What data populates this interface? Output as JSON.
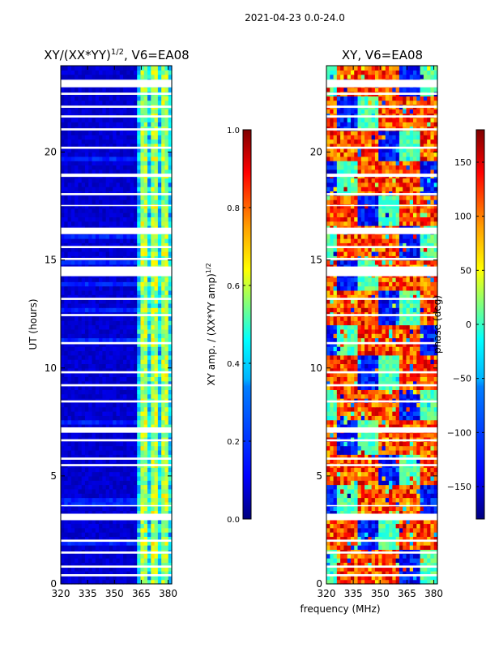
{
  "figure_title": "2021-04-23 0.0-24.0",
  "colors": {
    "jet": [
      "#00007f",
      "#0000ff",
      "#007fff",
      "#00ffff",
      "#7fff7f",
      "#ffff00",
      "#ff7f00",
      "#ff0000",
      "#7f0000"
    ],
    "background": "#ffffff",
    "gap": "#ffffff"
  },
  "chart_data": [
    {
      "type": "heatmap",
      "title": "XY/(XX*YY)",
      "title_superscript": "1/2",
      "title_suffix": ", V6=EA08",
      "xlabel": "",
      "ylabel": "UT (hours)",
      "xlim": [
        320,
        382
      ],
      "ylim": [
        0,
        24
      ],
      "x_ticks": [
        "320",
        "335",
        "350",
        "365",
        "380"
      ],
      "y_ticks": [
        "0",
        "5",
        "10",
        "15",
        "20"
      ],
      "x_tick_values": [
        320,
        335,
        350,
        365,
        380
      ],
      "y_tick_values": [
        0,
        5,
        10,
        15,
        20
      ],
      "colorbar": {
        "label": "XY amp. / (XX*YY amp)",
        "label_superscript": "1/2",
        "range": [
          0.0,
          1.0
        ],
        "ticks": [
          "0.0",
          "0.2",
          "0.4",
          "0.6",
          "0.8",
          "1.0"
        ],
        "tick_values": [
          0.0,
          0.2,
          0.4,
          0.6,
          0.8,
          1.0
        ]
      },
      "blank_time_ranges_hours": [
        [
          0.35,
          0.45
        ],
        [
          0.75,
          0.85
        ],
        [
          1.4,
          1.5
        ],
        [
          1.95,
          2.05
        ],
        [
          2.95,
          3.25
        ],
        [
          3.6,
          3.65
        ],
        [
          5.45,
          5.55
        ],
        [
          5.75,
          5.85
        ],
        [
          6.6,
          6.7
        ],
        [
          7.0,
          7.25
        ],
        [
          8.4,
          8.5
        ],
        [
          9.15,
          9.25
        ],
        [
          9.75,
          9.85
        ],
        [
          11.1,
          11.2
        ],
        [
          12.4,
          12.5
        ],
        [
          13.15,
          13.25
        ],
        [
          14.25,
          14.7
        ],
        [
          15.0,
          15.1
        ],
        [
          15.55,
          15.65
        ],
        [
          16.2,
          16.5
        ],
        [
          17.5,
          17.55
        ],
        [
          18.0,
          18.1
        ],
        [
          18.85,
          19.0
        ],
        [
          20.15,
          20.25
        ],
        [
          21.0,
          21.1
        ],
        [
          21.6,
          21.7
        ],
        [
          22.05,
          22.15
        ],
        [
          22.65,
          22.75
        ],
        [
          23.0,
          23.35
        ]
      ],
      "values_description": "low amplitude (~0.05-0.15) for 320-362 MHz; high amplitude (~0.3-0.6) bands at 363-382 MHz"
    },
    {
      "type": "heatmap",
      "title": "XY, V6=EA08",
      "xlabel": "frequency (MHz)",
      "ylabel": "",
      "xlim": [
        320,
        382
      ],
      "ylim": [
        0,
        24
      ],
      "x_ticks": [
        "320",
        "335",
        "350",
        "365",
        "380"
      ],
      "y_ticks": [
        "0",
        "5",
        "10",
        "15",
        "20"
      ],
      "x_tick_values": [
        320,
        335,
        350,
        365,
        380
      ],
      "y_tick_values": [
        0,
        5,
        10,
        15,
        20
      ],
      "colorbar": {
        "label": "phase (deg)",
        "range": [
          -180,
          180
        ],
        "ticks": [
          "−150",
          "−100",
          "−50",
          "0",
          "50",
          "100",
          "150"
        ],
        "tick_values": [
          -150,
          -100,
          -50,
          0,
          50,
          100,
          150
        ]
      },
      "blank_time_ranges_hours": [
        [
          0.35,
          0.45
        ],
        [
          0.75,
          0.85
        ],
        [
          1.4,
          1.5
        ],
        [
          1.95,
          2.05
        ],
        [
          2.95,
          3.25
        ],
        [
          3.6,
          3.65
        ],
        [
          5.45,
          5.55
        ],
        [
          5.75,
          5.85
        ],
        [
          6.6,
          6.7
        ],
        [
          7.0,
          7.25
        ],
        [
          8.4,
          8.5
        ],
        [
          9.15,
          9.25
        ],
        [
          9.75,
          9.85
        ],
        [
          11.1,
          11.2
        ],
        [
          12.4,
          12.5
        ],
        [
          13.15,
          13.25
        ],
        [
          14.25,
          14.7
        ],
        [
          15.0,
          15.1
        ],
        [
          15.55,
          15.65
        ],
        [
          16.2,
          16.5
        ],
        [
          17.5,
          17.55
        ],
        [
          18.0,
          18.1
        ],
        [
          18.85,
          19.0
        ],
        [
          20.15,
          20.25
        ],
        [
          21.0,
          21.1
        ],
        [
          21.6,
          21.7
        ],
        [
          22.05,
          22.15
        ],
        [
          22.65,
          22.75
        ],
        [
          23.0,
          23.35
        ]
      ],
      "values_description": "phase mostly 50-150 deg (yellow/orange/red) with regions near -180 to -100 (blue) and -50 to 0 (cyan), noisy speckle"
    }
  ]
}
